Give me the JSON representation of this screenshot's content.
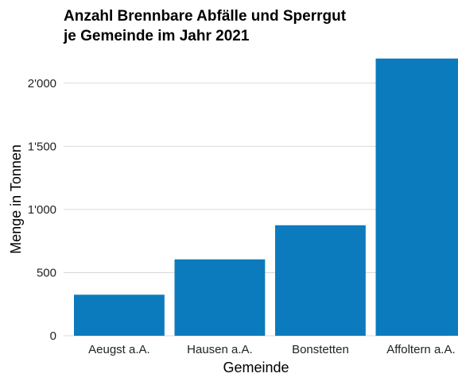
{
  "chart_data": {
    "type": "bar",
    "title": "Anzahl Brennbare Abfälle und Sperrgut",
    "subtitle": "je Gemeinde im Jahr 2021",
    "xlabel": "Gemeinde",
    "ylabel": "Menge in Tonnen",
    "categories": [
      "Aeugst a.A.",
      "Hausen a.A.",
      "Bonstetten",
      "Affoltern a.A."
    ],
    "values": [
      325,
      605,
      875,
      2195
    ],
    "ylim": [
      0,
      2250
    ],
    "yticks": [
      0,
      500,
      1000,
      1500,
      2000
    ],
    "ytick_labels": [
      "0",
      "500",
      "1'000",
      "1'500",
      "2'000"
    ],
    "grid": true,
    "legend": "none",
    "bar_color": "#0c7bbd",
    "grid_color": "#d9d9d9"
  }
}
